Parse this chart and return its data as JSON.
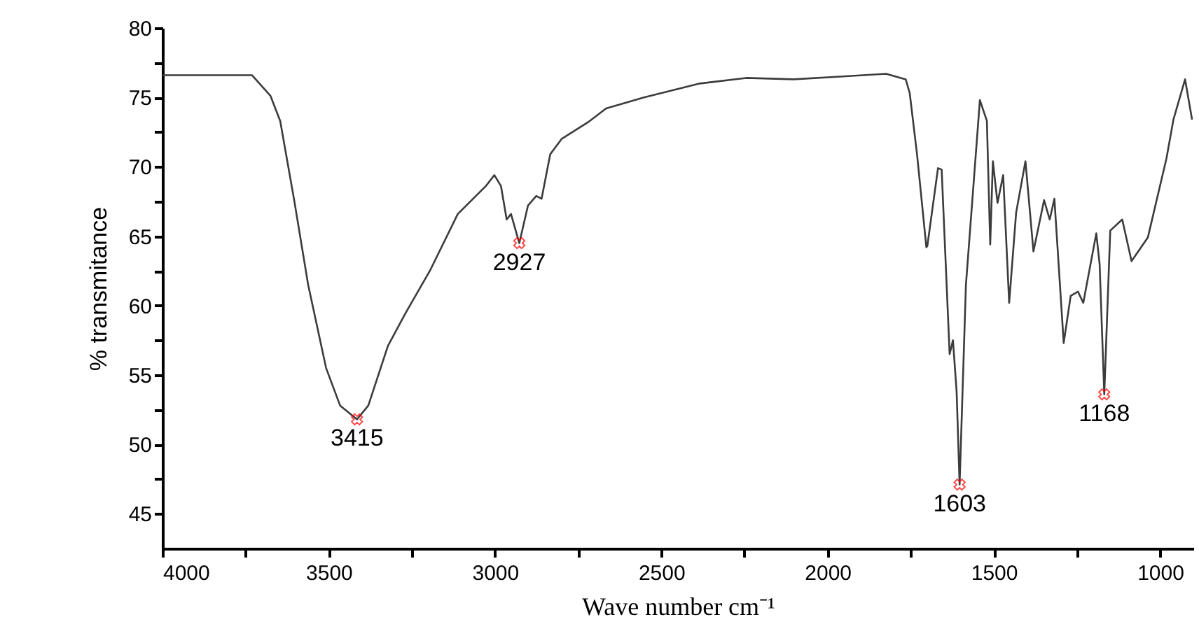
{
  "chart_data": {
    "type": "line",
    "xlabel": "Wave number cm⁻¹",
    "ylabel": "% transmitance",
    "xlim": [
      4000,
      900
    ],
    "ylim": [
      42.5,
      80
    ],
    "xticks": [
      4000,
      {
        "value": 3750,
        "label": null
      },
      3500,
      {
        "value": 3250,
        "label": null
      },
      3000,
      {
        "value": 2750,
        "label": null
      },
      2500,
      {
        "value": 2250,
        "label": null
      },
      2000,
      {
        "value": 1750,
        "label": null
      },
      1500,
      {
        "value": 1250,
        "label": null
      },
      1000
    ],
    "yticks": [
      45,
      {
        "value": 47.5,
        "label": null
      },
      50,
      {
        "value": 52.5,
        "label": null
      },
      55,
      {
        "value": 57.5,
        "label": null
      },
      60,
      {
        "value": 62.5,
        "label": null
      },
      65,
      {
        "value": 67.5,
        "label": null
      },
      70,
      {
        "value": 72.5,
        "label": null
      },
      75,
      {
        "value": 77.5,
        "label": null
      },
      80
    ],
    "marker": "none",
    "series": [
      {
        "color": "#3c3c3c",
        "x": [
          4000,
          3731,
          3675,
          3646,
          3604,
          3562,
          3508,
          3466,
          3415,
          3381,
          3322,
          3268,
          3196,
          3112,
          3028,
          3002,
          2982,
          2965,
          2952,
          2927,
          2901,
          2876,
          2860,
          2834,
          2800,
          2721,
          2666,
          2552,
          2384,
          2245,
          2102,
          1963,
          1824,
          1765,
          1753,
          1731,
          1703,
          1700,
          1668,
          1657,
          1633,
          1623,
          1612,
          1603,
          1584,
          1542,
          1521,
          1511,
          1503,
          1489,
          1472,
          1454,
          1433,
          1405,
          1381,
          1349,
          1332,
          1318,
          1290,
          1269,
          1247,
          1231,
          1192,
          1182,
          1168,
          1150,
          1114,
          1086,
          1037,
          981,
          960,
          925,
          904
        ],
        "values": [
          76.6,
          76.6,
          75.1,
          73.3,
          67.6,
          61.5,
          55.5,
          52.8,
          51.8,
          52.8,
          57.1,
          59.5,
          62.5,
          66.6,
          68.6,
          69.4,
          68.6,
          66.2,
          66.6,
          64.5,
          67.2,
          67.9,
          67.7,
          70.9,
          72.0,
          73.2,
          74.2,
          75.0,
          76.0,
          76.4,
          76.3,
          76.5,
          76.7,
          76.3,
          75.3,
          70.9,
          64.2,
          64.3,
          69.9,
          69.8,
          56.5,
          57.5,
          53.8,
          47.1,
          61.5,
          74.8,
          73.3,
          64.4,
          70.4,
          67.4,
          69.4,
          60.2,
          66.7,
          70.4,
          63.9,
          67.6,
          66.2,
          67.7,
          57.3,
          60.7,
          61.0,
          60.2,
          65.2,
          63.0,
          53.6,
          65.4,
          66.2,
          63.2,
          64.9,
          70.6,
          73.4,
          76.3,
          73.4
        ]
      }
    ],
    "annotations": [
      {
        "text": "3415",
        "x": 3415,
        "y": 51.8
      },
      {
        "text": "2927",
        "x": 2927,
        "y": 64.5
      },
      {
        "text": "1603",
        "x": 1603,
        "y": 47.1
      },
      {
        "text": "1168",
        "x": 1168,
        "y": 53.6
      }
    ]
  }
}
